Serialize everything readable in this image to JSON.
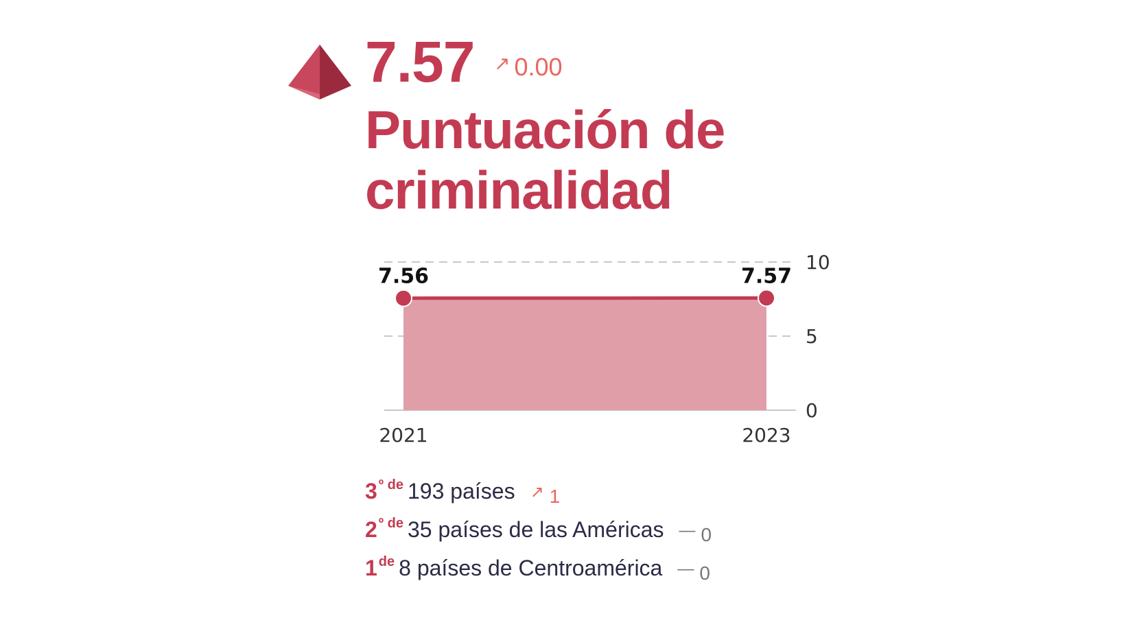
{
  "header": {
    "score": "7.57",
    "delta": "0.00",
    "delta_arrow": "↗",
    "title_line1": "Puntuación de",
    "title_line2": "criminalidad"
  },
  "colors": {
    "primary": "#c33b52",
    "area": "#e09ea9",
    "up": "#e8675f",
    "neutral": "#777777",
    "text": "#2b2b45"
  },
  "chart_data": {
    "type": "area",
    "x": [
      "2021",
      "2023"
    ],
    "series": [
      {
        "values": [
          7.56,
          7.57
        ]
      }
    ],
    "data_labels": [
      "7.56",
      "7.57"
    ],
    "ylim": [
      0,
      10
    ],
    "yticks": [
      0,
      5,
      10
    ],
    "grid": true,
    "y_axis_position": "right"
  },
  "ranks": [
    {
      "position": "3",
      "suffix": "º de",
      "text": "193 países",
      "change_symbol": "↗",
      "change": "1",
      "trend": "up"
    },
    {
      "position": "2",
      "suffix": "º de",
      "text": "35 países de las Américas",
      "change_symbol": "—",
      "change": "0",
      "trend": "flat"
    },
    {
      "position": "1",
      "suffix": "de",
      "text": "8 países de Centroamérica",
      "change_symbol": "—",
      "change": "0",
      "trend": "flat"
    }
  ]
}
